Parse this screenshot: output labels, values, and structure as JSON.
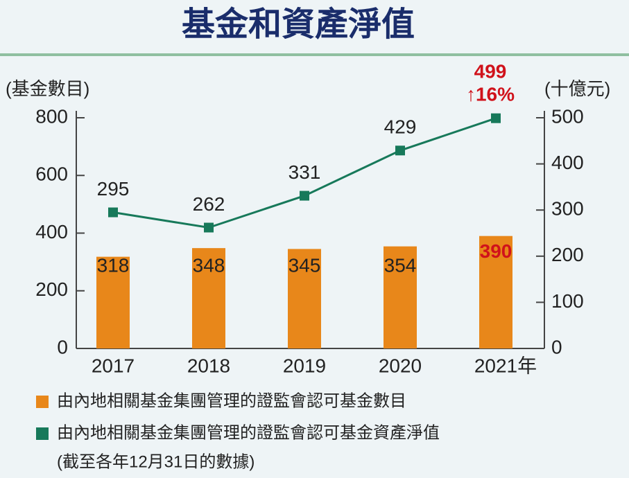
{
  "chart_data": {
    "type": "bar",
    "title": "基金和資產淨值",
    "y_label": "(基金數目)",
    "y2_label": "(十億元)",
    "categories": [
      "2017",
      "2018",
      "2019",
      "2020",
      "2021年"
    ],
    "series": [
      {
        "name": "由內地相關基金集團管理的證監會認可基金數目",
        "type": "bar",
        "color": "#e8871a",
        "values": [
          318,
          348,
          345,
          354,
          390
        ]
      },
      {
        "name": "由內地相關基金集團管理的證監會認可基金資產淨值",
        "type": "line",
        "axis": "y2",
        "color": "#17795a",
        "values": [
          295,
          262,
          331,
          429,
          499
        ]
      }
    ],
    "ylim": [
      0,
      800
    ],
    "yticks": [
      0,
      200,
      400,
      600,
      800
    ],
    "y2lim": [
      0,
      500
    ],
    "y2ticks": [
      0,
      100,
      200,
      300,
      400,
      500
    ],
    "annotation": "↑16%",
    "highlight_color": "#d0121b",
    "note": "(截至各年12月31日的數據)"
  }
}
